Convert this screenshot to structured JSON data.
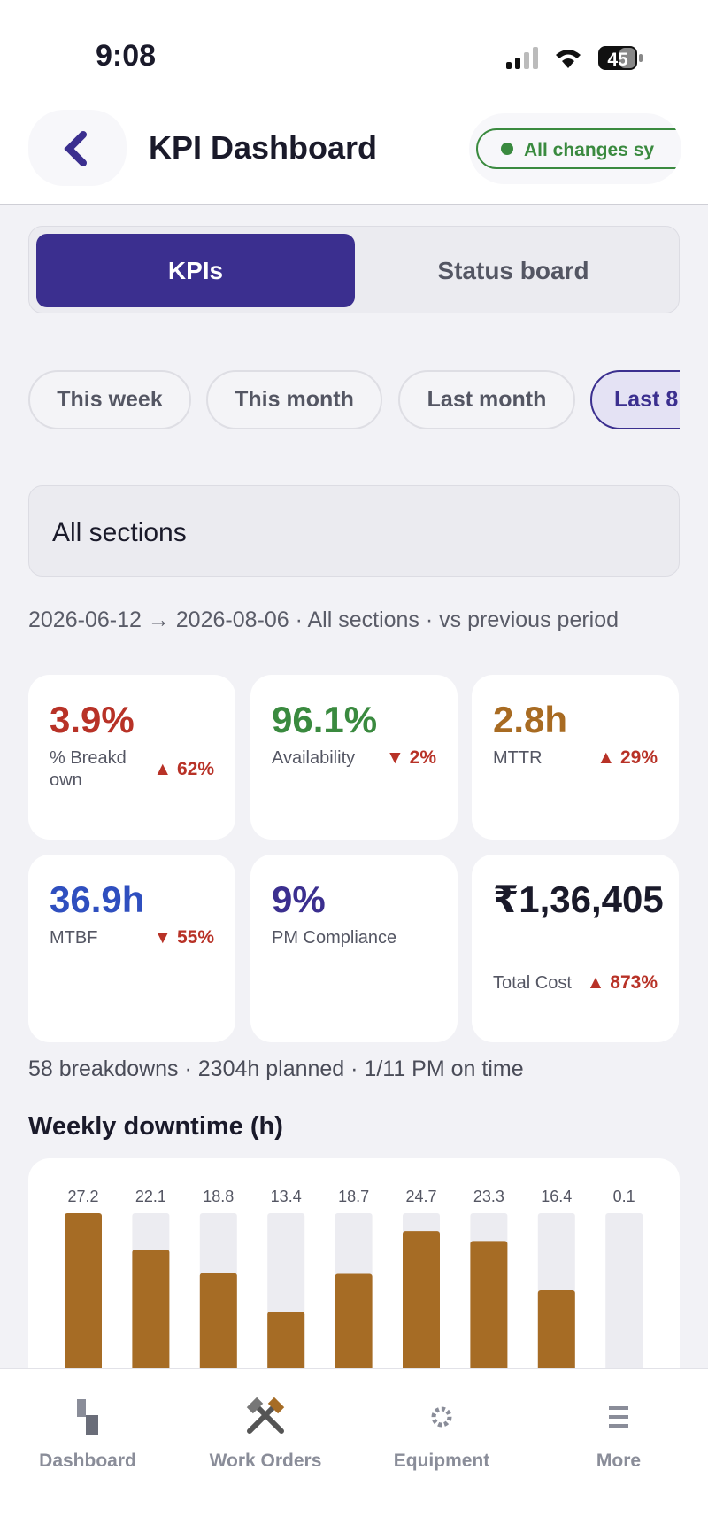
{
  "status": {
    "time": "9:08",
    "battery": "45"
  },
  "header": {
    "title": "KPI Dashboard",
    "sync": "All changes sy"
  },
  "tabs": [
    "KPIs",
    "Status board"
  ],
  "chips": [
    "This week",
    "This month",
    "Last month",
    "Last 8"
  ],
  "section": "All sections",
  "period": "2026-06-12 → 2026-08-06 · All sections · vs previous period",
  "cards": [
    {
      "value": "3.9%",
      "label": "% Breakdown",
      "delta": "▲ 62%"
    },
    {
      "value": "96.1%",
      "label": "Availability",
      "delta": "▼ 2%"
    },
    {
      "value": "2.8h",
      "label": "MTTR",
      "delta": "▲ 29%"
    },
    {
      "value": "36.9h",
      "label": "MTBF",
      "delta": "▼ 55%"
    },
    {
      "value": "9%",
      "label": "PM Compliance",
      "delta": ""
    },
    {
      "value": "₹1,36,405",
      "label": "Total Cost",
      "delta": "▲ 873%"
    }
  ],
  "summary": "58 breakdowns · 2304h planned · 1/11 PM on time",
  "chart_data": {
    "type": "bar",
    "title": "Weekly downtime (h)",
    "values": [
      27.2,
      22.1,
      18.8,
      13.4,
      18.7,
      24.7,
      23.3,
      16.4,
      0.1
    ],
    "color": "#a66c25"
  },
  "nav": [
    "Dashboard",
    "Work Orders",
    "Equipment",
    "More"
  ]
}
